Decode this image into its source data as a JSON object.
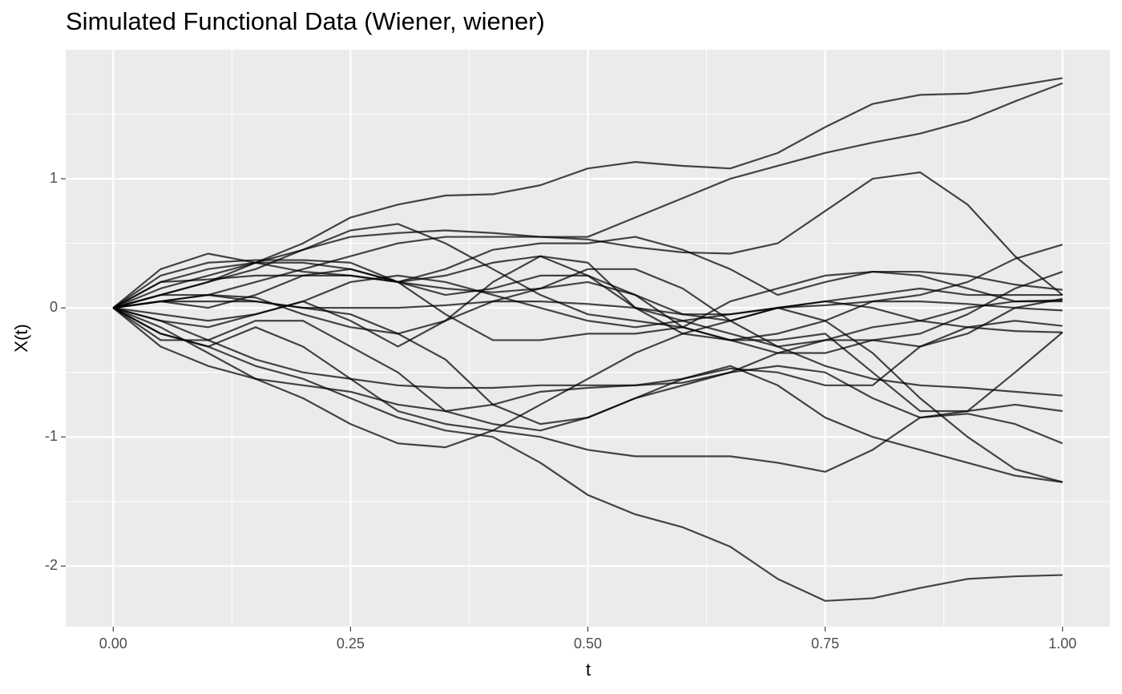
{
  "chart_data": {
    "type": "line",
    "title": "Simulated Functional Data (Wiener, wiener)",
    "x_label": "t",
    "y_label": "X(t)",
    "x": [
      0,
      0.05,
      0.1,
      0.15,
      0.2,
      0.25,
      0.3,
      0.35,
      0.4,
      0.45,
      0.5,
      0.55,
      0.6,
      0.65,
      0.7,
      0.75,
      0.8,
      0.85,
      0.9,
      0.95,
      1.0
    ],
    "color": "#000000",
    "opacity": 0.72,
    "grid": true,
    "xlim": [
      -0.05,
      1.05
    ],
    "xticks": [
      {
        "value": 0,
        "label": "0.00"
      },
      {
        "value": 0.25,
        "label": "0.25"
      },
      {
        "value": 0.5,
        "label": "0.50"
      },
      {
        "value": 0.75,
        "label": "0.75"
      },
      {
        "value": 1,
        "label": "1.00"
      }
    ],
    "ylim": [
      -2.47,
      2.0
    ],
    "yticks": [
      -2,
      -1,
      0,
      1
    ],
    "series": [
      {
        "values": [
          0,
          0.1,
          0.2,
          0.35,
          0.5,
          0.7,
          0.8,
          0.87,
          0.88,
          0.95,
          1.08,
          1.13,
          1.1,
          1.08,
          1.2,
          1.4,
          1.58,
          1.65,
          1.66,
          1.72,
          1.78
        ]
      },
      {
        "values": [
          0,
          0.05,
          0.1,
          0.2,
          0.3,
          0.4,
          0.5,
          0.55,
          0.55,
          0.55,
          0.55,
          0.7,
          0.85,
          1.0,
          1.1,
          1.2,
          1.28,
          1.35,
          1.45,
          1.6,
          1.74
        ]
      },
      {
        "values": [
          0,
          -0.2,
          -0.3,
          -0.45,
          -0.55,
          -0.7,
          -0.85,
          -0.95,
          -1.0,
          -1.2,
          -1.45,
          -1.6,
          -1.7,
          -1.85,
          -2.1,
          -2.27,
          -2.25,
          -2.17,
          -2.1,
          -2.08,
          -2.07
        ]
      },
      {
        "values": [
          0,
          0.15,
          0.25,
          0.35,
          0.45,
          0.55,
          0.58,
          0.6,
          0.58,
          0.55,
          0.53,
          0.47,
          0.43,
          0.42,
          0.5,
          0.75,
          1.0,
          1.05,
          0.8,
          0.4,
          0.1
        ]
      },
      {
        "values": [
          0,
          -0.2,
          -0.3,
          -0.15,
          -0.3,
          -0.55,
          -0.8,
          -0.9,
          -0.95,
          -1.0,
          -1.1,
          -1.15,
          -1.15,
          -1.15,
          -1.2,
          -1.27,
          -1.1,
          -0.85,
          -0.82,
          -0.9,
          -1.05
        ]
      },
      {
        "values": [
          0,
          -0.1,
          -0.25,
          -0.4,
          -0.5,
          -0.55,
          -0.6,
          -0.62,
          -0.62,
          -0.6,
          -0.6,
          -0.6,
          -0.55,
          -0.45,
          -0.6,
          -0.85,
          -1.0,
          -1.1,
          -1.2,
          -1.3,
          -1.35
        ]
      },
      {
        "values": [
          0,
          -0.15,
          -0.35,
          -0.55,
          -0.7,
          -0.9,
          -1.05,
          -1.08,
          -0.95,
          -0.75,
          -0.55,
          -0.35,
          -0.2,
          -0.1,
          0.0,
          -0.1,
          -0.35,
          -0.7,
          -1.0,
          -1.25,
          -1.35
        ]
      },
      {
        "values": [
          0,
          0.2,
          0.3,
          0.35,
          0.35,
          0.3,
          0.2,
          0.1,
          0.15,
          0.25,
          0.25,
          0.1,
          -0.15,
          -0.25,
          -0.2,
          -0.1,
          0.05,
          0.1,
          0.2,
          0.38,
          0.49
        ]
      },
      {
        "values": [
          0,
          0.1,
          0.2,
          0.3,
          0.45,
          0.6,
          0.65,
          0.5,
          0.3,
          0.1,
          -0.05,
          -0.1,
          -0.15,
          -0.25,
          -0.35,
          -0.35,
          -0.25,
          -0.2,
          -0.05,
          0.15,
          0.28
        ]
      },
      {
        "values": [
          0,
          0.05,
          0.0,
          0.1,
          0.25,
          0.3,
          0.2,
          0.3,
          0.45,
          0.5,
          0.5,
          0.55,
          0.45,
          0.3,
          0.1,
          0.2,
          0.28,
          0.25,
          0.15,
          0.05,
          0.05
        ]
      },
      {
        "values": [
          0,
          -0.1,
          -0.15,
          -0.05,
          0.05,
          -0.1,
          -0.3,
          -0.1,
          0.2,
          0.4,
          0.35,
          0.0,
          -0.1,
          -0.2,
          -0.3,
          -0.45,
          -0.55,
          -0.6,
          -0.62,
          -0.65,
          -0.68
        ]
      },
      {
        "values": [
          0,
          0.3,
          0.42,
          0.35,
          0.28,
          0.25,
          0.2,
          0.25,
          0.35,
          0.4,
          0.25,
          0.0,
          -0.2,
          -0.25,
          -0.25,
          -0.2,
          -0.5,
          -0.8,
          -0.8,
          -0.75,
          -0.8
        ]
      },
      {
        "values": [
          0,
          0.25,
          0.35,
          0.37,
          0.37,
          0.35,
          0.2,
          -0.05,
          -0.25,
          -0.25,
          -0.2,
          -0.2,
          -0.15,
          0.05,
          0.15,
          0.25,
          0.28,
          0.28,
          0.25,
          0.18,
          0.14
        ]
      },
      {
        "values": [
          0,
          -0.3,
          -0.45,
          -0.55,
          -0.6,
          -0.65,
          -0.75,
          -0.8,
          -0.75,
          -0.65,
          -0.62,
          -0.6,
          -0.58,
          -0.5,
          -0.45,
          -0.5,
          -0.7,
          -0.85,
          -0.8,
          -0.5,
          -0.19
        ]
      },
      {
        "values": [
          0,
          0.1,
          0.1,
          0.05,
          0.0,
          -0.05,
          -0.2,
          -0.4,
          -0.75,
          -0.9,
          -0.85,
          -0.7,
          -0.55,
          -0.47,
          -0.5,
          -0.6,
          -0.6,
          -0.3,
          -0.15,
          -0.1,
          -0.14
        ]
      },
      {
        "values": [
          0,
          -0.25,
          -0.25,
          -0.1,
          -0.1,
          -0.3,
          -0.5,
          -0.8,
          -0.9,
          -0.95,
          -0.85,
          -0.7,
          -0.6,
          -0.5,
          -0.35,
          -0.25,
          -0.25,
          -0.3,
          -0.2,
          0.0,
          0.07
        ]
      },
      {
        "values": [
          0,
          0.05,
          0.05,
          0.05,
          0.0,
          0.0,
          0.0,
          0.02,
          0.05,
          0.05,
          0.03,
          0.0,
          -0.05,
          -0.05,
          0.0,
          0.02,
          0.05,
          0.05,
          0.03,
          0.0,
          -0.02
        ]
      },
      {
        "values": [
          0,
          0.2,
          0.22,
          0.25,
          0.25,
          0.25,
          0.2,
          0.15,
          0.12,
          0.15,
          0.2,
          0.1,
          -0.05,
          -0.1,
          0.0,
          0.05,
          0.1,
          0.15,
          0.1,
          0.1,
          0.1
        ]
      },
      {
        "values": [
          0,
          -0.05,
          -0.1,
          -0.05,
          0.05,
          0.2,
          0.25,
          0.2,
          0.1,
          0.0,
          -0.1,
          -0.15,
          -0.1,
          -0.05,
          0.0,
          0.05,
          0.0,
          -0.1,
          -0.15,
          -0.18,
          -0.19
        ]
      },
      {
        "values": [
          0,
          0.05,
          0.1,
          0.08,
          -0.05,
          -0.15,
          -0.2,
          -0.1,
          0.05,
          0.15,
          0.3,
          0.3,
          0.15,
          -0.1,
          -0.3,
          -0.25,
          -0.15,
          -0.1,
          0.0,
          0.05,
          0.06
        ]
      }
    ]
  }
}
